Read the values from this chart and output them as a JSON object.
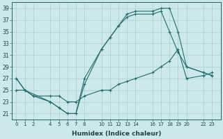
{
  "xlabel": "Humidex (Indice chaleur)",
  "bg_color": "#cce8e8",
  "line_color": "#1a7070",
  "grid_color": "#aacfcf",
  "ylim": [
    20,
    40
  ],
  "yticks": [
    21,
    23,
    25,
    27,
    29,
    31,
    33,
    35,
    37,
    39
  ],
  "xtick_positions": [
    0,
    1,
    2,
    4,
    5,
    6,
    7,
    8,
    10,
    11,
    12,
    13,
    14,
    16,
    17,
    18,
    19,
    20,
    22,
    23
  ],
  "xtick_labels": [
    "0",
    "1",
    "2",
    "4",
    "5",
    "6",
    "7",
    "8",
    "10",
    "11",
    "12",
    "13",
    "14",
    "16",
    "17",
    "18",
    "19",
    "20",
    "22",
    "23"
  ],
  "line1_x": [
    0,
    1,
    4,
    5,
    6,
    7,
    8,
    10,
    11,
    12,
    13,
    14,
    16,
    17,
    18,
    19,
    20,
    22,
    23
  ],
  "line1_y": [
    27,
    25,
    23,
    22,
    21,
    21,
    27,
    32,
    34,
    36,
    38,
    38.5,
    38.5,
    39,
    39,
    35,
    29,
    28,
    27.5
  ],
  "line2_x": [
    0,
    1,
    2,
    4,
    5,
    6,
    7,
    8,
    10,
    11,
    12,
    13,
    14,
    16,
    17,
    18,
    19,
    20,
    22,
    23
  ],
  "line2_y": [
    25,
    25,
    24,
    24,
    24,
    23,
    23,
    24,
    25,
    25,
    26,
    26.5,
    27,
    28,
    29,
    30,
    32,
    27,
    27.5,
    28
  ],
  "line3_x": [
    0,
    1,
    2,
    4,
    5,
    6,
    7,
    8,
    10,
    11,
    12,
    13,
    14,
    16,
    17,
    18,
    19,
    20,
    22,
    23
  ],
  "line3_y": [
    27,
    25,
    24,
    23,
    22,
    21,
    21,
    26,
    32,
    34,
    36,
    37.5,
    38,
    38,
    38.5,
    35,
    31.5,
    29,
    28,
    27.5
  ]
}
